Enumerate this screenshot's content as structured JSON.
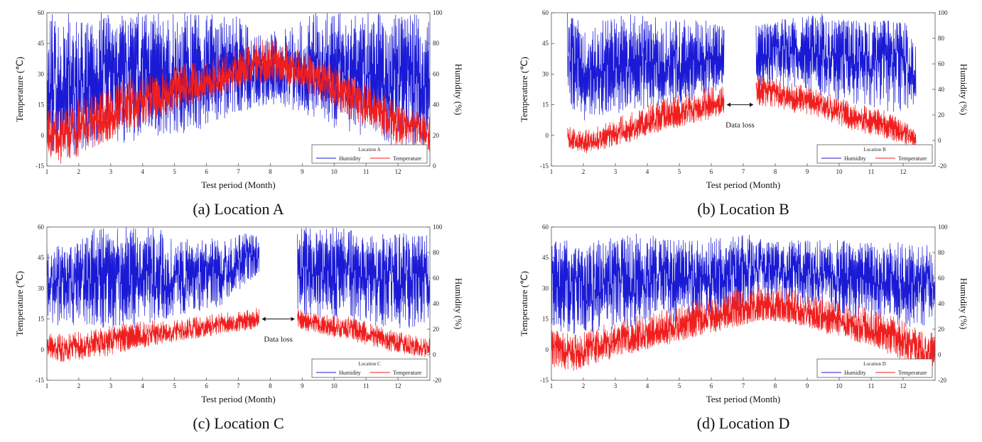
{
  "colors": {
    "humidity": "#1a1ad6",
    "temperature": "#f01e1e",
    "axis": "#555555"
  },
  "chart_data": [
    {
      "type": "line",
      "caption": "(a) Location A",
      "legend_title": "Location A",
      "xlabel": "Test period (Month)",
      "ylabel_left": "Temperature (℃)",
      "ylabel_right": "Humidity (%)",
      "xlim": [
        1,
        13
      ],
      "xticks": [
        "1",
        "2",
        "3",
        "4",
        "5",
        "6",
        "7",
        "8",
        "9",
        "10",
        "11",
        "12"
      ],
      "ylim_left": [
        -15,
        60
      ],
      "yticks_left": [
        "-15",
        "0",
        "15",
        "30",
        "45",
        "60"
      ],
      "ylim_right": [
        0,
        100
      ],
      "yticks_right": [
        "0",
        "20",
        "40",
        "60",
        "80",
        "100"
      ],
      "data_loss": null,
      "legend_placement": "bottom-right",
      "series": [
        {
          "name": "Humidity",
          "axis": "right",
          "month": [
            1,
            1.5,
            2,
            2.5,
            3,
            3.5,
            4,
            4.5,
            5,
            5.5,
            6,
            6.5,
            7,
            7.5,
            8,
            8.5,
            9,
            9.5,
            10,
            10.5,
            11,
            11.5,
            12,
            12.5,
            13
          ],
          "mean": [
            55,
            52,
            50,
            55,
            58,
            60,
            62,
            62,
            62,
            62,
            60,
            58,
            57,
            56,
            55,
            55,
            57,
            58,
            58,
            60,
            60,
            60,
            62,
            60,
            58
          ],
          "low": [
            10,
            5,
            8,
            10,
            15,
            15,
            18,
            20,
            20,
            22,
            25,
            30,
            35,
            38,
            40,
            38,
            35,
            30,
            25,
            20,
            18,
            15,
            10,
            10,
            10
          ],
          "high": [
            100,
            100,
            100,
            100,
            100,
            100,
            100,
            100,
            100,
            100,
            100,
            100,
            100,
            90,
            90,
            90,
            100,
            100,
            100,
            100,
            100,
            100,
            100,
            100,
            100
          ]
        },
        {
          "name": "Temperature",
          "axis": "left",
          "month": [
            1,
            1.5,
            2,
            2.5,
            3,
            3.5,
            4,
            4.5,
            5,
            5.5,
            6,
            6.5,
            7,
            7.5,
            8,
            8.5,
            9,
            9.5,
            10,
            10.5,
            11,
            11.5,
            12,
            12.5,
            13
          ],
          "mean": [
            2,
            0,
            3,
            6,
            10,
            13,
            16,
            19,
            22,
            24,
            26,
            28,
            30,
            32,
            33,
            32,
            30,
            27,
            24,
            20,
            15,
            10,
            6,
            4,
            2
          ],
          "low": [
            -10,
            -15,
            -10,
            -6,
            -2,
            2,
            5,
            8,
            12,
            15,
            18,
            20,
            22,
            25,
            26,
            24,
            22,
            18,
            14,
            8,
            4,
            0,
            -5,
            -5,
            -8
          ],
          "high": [
            12,
            15,
            18,
            20,
            24,
            28,
            30,
            32,
            34,
            36,
            38,
            40,
            42,
            46,
            48,
            46,
            42,
            38,
            34,
            30,
            26,
            22,
            15,
            12,
            10
          ]
        }
      ]
    },
    {
      "type": "line",
      "caption": "(b) Location B",
      "legend_title": "Location B",
      "xlabel": "Test period (Month)",
      "ylabel_left": "Temperature (℃)",
      "ylabel_right": "Humidity (%)",
      "xlim": [
        1,
        13
      ],
      "xticks": [
        "1",
        "2",
        "3",
        "4",
        "5",
        "6",
        "7",
        "8",
        "9",
        "10",
        "11",
        "12"
      ],
      "ylim_left": [
        -15,
        60
      ],
      "yticks_left": [
        "-15",
        "0",
        "15",
        "30",
        "45",
        "60"
      ],
      "ylim_right": [
        -20,
        100
      ],
      "yticks_right": [
        "-20",
        "0",
        "20",
        "40",
        "60",
        "80",
        "100"
      ],
      "data_loss": {
        "start": 6.4,
        "end": 7.4,
        "label": "Data loss"
      },
      "legend_placement": "bottom-right",
      "series": [
        {
          "name": "Humidity",
          "axis": "right",
          "month": [
            1.5,
            2,
            2.5,
            3,
            3.5,
            4,
            4.5,
            5,
            5.5,
            6,
            6.4,
            7.4,
            8,
            8.5,
            9,
            9.5,
            10,
            10.5,
            11,
            11.5,
            12,
            12.4
          ],
          "mean": [
            70,
            55,
            55,
            60,
            62,
            62,
            60,
            60,
            60,
            60,
            60,
            75,
            70,
            68,
            70,
            70,
            70,
            72,
            72,
            72,
            70,
            60
          ],
          "low": [
            30,
            15,
            18,
            20,
            20,
            25,
            25,
            28,
            30,
            35,
            40,
            40,
            42,
            40,
            38,
            35,
            30,
            28,
            25,
            22,
            22,
            30
          ],
          "high": [
            100,
            95,
            95,
            100,
            100,
            100,
            95,
            95,
            95,
            95,
            90,
            90,
            95,
            95,
            100,
            100,
            95,
            95,
            95,
            95,
            95,
            75
          ]
        },
        {
          "name": "Temperature",
          "axis": "left",
          "month": [
            1.5,
            2,
            2.5,
            3,
            3.5,
            4,
            4.5,
            5,
            5.5,
            6,
            6.4,
            7.4,
            8,
            8.5,
            9,
            9.5,
            10,
            10.5,
            11,
            11.5,
            12,
            12.4
          ],
          "mean": [
            -2,
            -4,
            -2,
            0,
            2,
            5,
            7,
            9,
            11,
            13,
            14,
            23,
            20,
            18,
            17,
            14,
            12,
            8,
            6,
            4,
            2,
            -2
          ],
          "low": [
            -6,
            -9,
            -8,
            -5,
            -3,
            0,
            2,
            4,
            6,
            8,
            10,
            15,
            13,
            11,
            10,
            8,
            5,
            2,
            0,
            -2,
            -5,
            -6
          ],
          "high": [
            5,
            3,
            5,
            8,
            12,
            15,
            18,
            20,
            22,
            24,
            25,
            30,
            28,
            26,
            24,
            22,
            20,
            16,
            14,
            12,
            8,
            2
          ]
        }
      ]
    },
    {
      "type": "line",
      "caption": "(c) Location C",
      "legend_title": "Location C",
      "xlabel": "Test period (Month)",
      "ylabel_left": "Temperature (℃)",
      "ylabel_right": "Humidity (%)",
      "xlim": [
        1,
        13
      ],
      "xticks": [
        "1",
        "2",
        "3",
        "4",
        "5",
        "6",
        "7",
        "8",
        "9",
        "10",
        "11",
        "12"
      ],
      "ylim_left": [
        -15,
        60
      ],
      "yticks_left": [
        "-15",
        "0",
        "15",
        "30",
        "45",
        "60"
      ],
      "ylim_right": [
        -20,
        100
      ],
      "yticks_right": [
        "-20",
        "0",
        "20",
        "40",
        "60",
        "80",
        "100"
      ],
      "data_loss": {
        "start": 7.65,
        "end": 8.85,
        "label": "Data loss"
      },
      "legend_placement": "bottom-right",
      "series": [
        {
          "name": "Humidity",
          "axis": "right",
          "month": [
            1,
            1.5,
            2,
            2.5,
            3,
            3.5,
            4,
            4.5,
            5,
            5.5,
            6,
            6.5,
            7,
            7.5,
            7.65,
            8.85,
            9.5,
            10,
            10.5,
            11,
            11.5,
            12,
            12.5,
            13
          ],
          "mean": [
            60,
            55,
            58,
            60,
            62,
            62,
            62,
            60,
            60,
            60,
            62,
            65,
            72,
            78,
            78,
            72,
            70,
            70,
            68,
            68,
            66,
            64,
            62,
            60
          ],
          "low": [
            25,
            20,
            25,
            22,
            20,
            20,
            22,
            25,
            30,
            32,
            35,
            38,
            50,
            60,
            62,
            30,
            28,
            25,
            25,
            22,
            22,
            20,
            20,
            20
          ],
          "high": [
            90,
            85,
            90,
            100,
            100,
            100,
            100,
            100,
            95,
            90,
            92,
            90,
            95,
            95,
            90,
            100,
            100,
            100,
            100,
            95,
            95,
            95,
            95,
            95
          ]
        },
        {
          "name": "Temperature",
          "axis": "left",
          "month": [
            1,
            1.5,
            2,
            2.5,
            3,
            3.5,
            4,
            4.5,
            5,
            5.5,
            6,
            6.5,
            7,
            7.5,
            7.65,
            8.85,
            9.5,
            10,
            10.5,
            11,
            11.5,
            12,
            12.5,
            13
          ],
          "mean": [
            2,
            0,
            1,
            2,
            4,
            5,
            6,
            7,
            8,
            9,
            10,
            11,
            12,
            13,
            14,
            14,
            12,
            11,
            10,
            7,
            5,
            3,
            1,
            0
          ],
          "low": [
            -4,
            -6,
            -5,
            -4,
            -3,
            -1,
            1,
            2,
            4,
            5,
            6,
            8,
            9,
            10,
            12,
            10,
            8,
            6,
            5,
            2,
            0,
            -2,
            -3,
            -4
          ],
          "high": [
            8,
            8,
            9,
            10,
            12,
            13,
            14,
            15,
            15,
            16,
            17,
            18,
            19,
            20,
            21,
            20,
            18,
            17,
            16,
            14,
            11,
            9,
            7,
            6
          ]
        }
      ]
    },
    {
      "type": "line",
      "caption": "(d) Location D",
      "legend_title": "Location D",
      "xlabel": "Test period (Month)",
      "ylabel_left": "Temperature (℃)",
      "ylabel_right": "Humidity (%)",
      "xlim": [
        1,
        13
      ],
      "xticks": [
        "1",
        "2",
        "3",
        "4",
        "5",
        "6",
        "7",
        "8",
        "9",
        "10",
        "11",
        "12"
      ],
      "ylim_left": [
        -15,
        60
      ],
      "yticks_left": [
        "-15",
        "0",
        "15",
        "30",
        "45",
        "60"
      ],
      "ylim_right": [
        -20,
        100
      ],
      "yticks_right": [
        "-20",
        "0",
        "20",
        "40",
        "60",
        "80",
        "100"
      ],
      "data_loss": null,
      "legend_placement": "bottom-right",
      "series": [
        {
          "name": "Humidity",
          "axis": "right",
          "month": [
            1,
            1.5,
            2,
            2.5,
            3,
            3.5,
            4,
            4.5,
            5,
            5.5,
            6,
            6.5,
            7,
            7.5,
            8,
            8.5,
            9,
            9.5,
            10,
            10.5,
            11,
            11.5,
            12,
            12.5,
            13
          ],
          "mean": [
            60,
            55,
            52,
            55,
            58,
            60,
            62,
            62,
            62,
            62,
            62,
            64,
            66,
            72,
            72,
            70,
            68,
            66,
            66,
            64,
            62,
            62,
            60,
            58,
            56
          ],
          "low": [
            20,
            15,
            15,
            18,
            20,
            20,
            22,
            25,
            25,
            28,
            30,
            32,
            35,
            40,
            40,
            38,
            35,
            32,
            30,
            28,
            25,
            22,
            20,
            20,
            25
          ],
          "high": [
            95,
            90,
            85,
            90,
            92,
            95,
            95,
            90,
            90,
            90,
            92,
            92,
            95,
            92,
            90,
            90,
            90,
            90,
            90,
            88,
            88,
            88,
            88,
            85,
            88
          ]
        },
        {
          "name": "Temperature",
          "axis": "left",
          "month": [
            1,
            1.5,
            2,
            2.5,
            3,
            3.5,
            4,
            4.5,
            5,
            5.5,
            6,
            6.5,
            7,
            7.5,
            8,
            8.5,
            9,
            9.5,
            10,
            10.5,
            11,
            11.5,
            12,
            12.5,
            13
          ],
          "mean": [
            0,
            -2,
            -1,
            1,
            3,
            5,
            7,
            9,
            11,
            13,
            14,
            15,
            16,
            18,
            18,
            17,
            15,
            13,
            12,
            10,
            8,
            5,
            2,
            -1,
            -2
          ],
          "low": [
            -8,
            -11,
            -9,
            -6,
            -4,
            -2,
            0,
            2,
            4,
            6,
            8,
            10,
            12,
            14,
            14,
            13,
            11,
            8,
            6,
            4,
            2,
            -2,
            -6,
            -9,
            -8
          ],
          "high": [
            10,
            8,
            10,
            12,
            14,
            16,
            18,
            20,
            22,
            24,
            26,
            28,
            30,
            32,
            32,
            30,
            28,
            26,
            24,
            22,
            20,
            18,
            14,
            10,
            8
          ]
        }
      ]
    }
  ]
}
